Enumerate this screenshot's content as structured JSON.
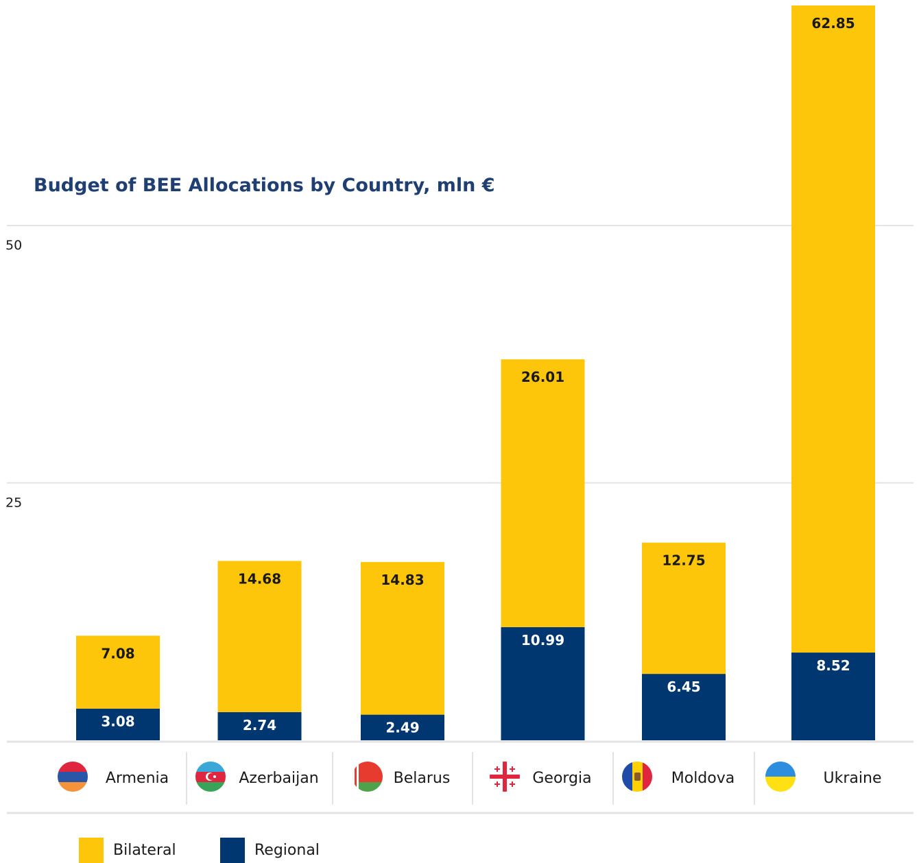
{
  "colors": {
    "bilateral": "#fdc60a",
    "regional": "#003770",
    "title": "#1f3f73",
    "grid": "#e3e3e3"
  },
  "chart_data": {
    "type": "bar",
    "stacked": true,
    "title": "Budget of BEE Allocations by Country, mln €",
    "categories": [
      "Armenia",
      "Azerbaijan",
      "Belarus",
      "Georgia",
      "Moldova",
      "Ukraine"
    ],
    "flag_icons": [
      "armenia-flag-icon",
      "azerbaijan-flag-icon",
      "belarus-flag-icon",
      "georgia-flag-icon",
      "moldova-flag-icon",
      "ukraine-flag-icon"
    ],
    "series": [
      {
        "name": "Regional",
        "color": "#003770",
        "values": [
          3.08,
          2.74,
          2.49,
          10.99,
          6.45,
          8.52
        ]
      },
      {
        "name": "Bilateral",
        "color": "#fdc60a",
        "values": [
          7.08,
          14.68,
          14.83,
          26.01,
          12.75,
          62.85
        ]
      }
    ],
    "yticks": [
      25,
      50
    ],
    "ylim": [
      0,
      71.5
    ],
    "grid": true,
    "legend_position": "bottom-left"
  }
}
